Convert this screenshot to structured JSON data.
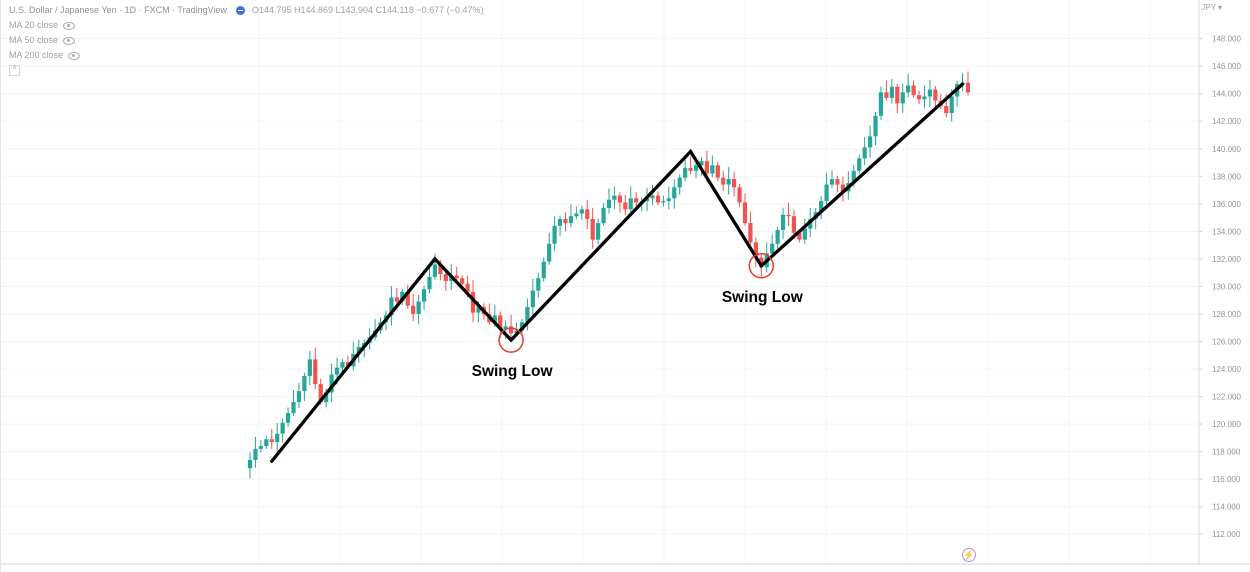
{
  "header": {
    "symbol_title": "U.S. Dollar / Japanese Yen · 1D · FXCM · TradingView",
    "ohlc": "O144.795 H144.869 L143.904 C144.118 −0.677 (−0.47%)"
  },
  "indicators": [
    {
      "label": "MA 20 close"
    },
    {
      "label": "MA 50 close"
    },
    {
      "label": "MA 200 close"
    }
  ],
  "currency": "JPY ▾",
  "colors": {
    "up": "#26a69a",
    "down": "#ef5350",
    "trend_line": "#000000",
    "circle": "#e53935",
    "grid": "#f1f3f6",
    "axis_text": "#8f949e"
  },
  "chart_data": {
    "type": "candlestick",
    "y_axis": {
      "ticks": [
        112,
        114,
        116,
        118,
        120,
        122,
        124,
        126,
        128,
        130,
        132,
        134,
        136,
        138,
        140,
        142,
        144,
        146,
        148
      ],
      "ylim": [
        111,
        149.5
      ],
      "tick_format": "0.000"
    },
    "closes": [
      117.4,
      118.2,
      118.4,
      118.9,
      118.7,
      119.3,
      120.1,
      120.8,
      121.6,
      122.4,
      123.5,
      124.7,
      122.9,
      121.6,
      122.3,
      123.6,
      124.1,
      124.5,
      124.2,
      125.1,
      125.6,
      125.9,
      126.3,
      126.8,
      127.4,
      127.9,
      129.2,
      128.9,
      129.6,
      128.6,
      128.0,
      128.9,
      129.8,
      130.7,
      131.6,
      130.9,
      130.4,
      130.8,
      130.6,
      130.2,
      129.6,
      128.1,
      128.5,
      128.0,
      127.4,
      127.9,
      126.9,
      127.1,
      126.6,
      126.8,
      127.4,
      128.5,
      129.7,
      130.6,
      131.8,
      133.1,
      134.4,
      134.9,
      134.6,
      135.1,
      135.3,
      135.6,
      134.9,
      133.4,
      134.6,
      135.7,
      136.3,
      136.6,
      136.1,
      135.6,
      136.4,
      136.1,
      136.2,
      136.4,
      136.6,
      136.1,
      136.2,
      136.4,
      137.2,
      137.9,
      138.6,
      138.4,
      138.8,
      139.1,
      138.2,
      138.8,
      137.9,
      137.4,
      137.8,
      137.2,
      136.1,
      134.6,
      133.2,
      132.1,
      131.4,
      132.4,
      133.1,
      134.1,
      135.2,
      135.1,
      133.9,
      133.4,
      134.2,
      134.9,
      135.4,
      136.2,
      137.4,
      137.8,
      137.4,
      136.9,
      137.5,
      138.4,
      139.3,
      140.1,
      140.9,
      142.4,
      144.1,
      143.7,
      144.5,
      143.3,
      144.1,
      144.6,
      143.9,
      143.6,
      143.8,
      144.3,
      143.5,
      143.1,
      142.6,
      143.8,
      144.7,
      144.8,
      144.1
    ]
  },
  "annotations": {
    "swing_lows": [
      {
        "label": "Swing Low",
        "index": 48
      },
      {
        "label": "Swing Low",
        "index": 94
      }
    ],
    "zigzag_price_points": [
      {
        "index": 4,
        "price": 117.3
      },
      {
        "index": 34,
        "price": 132.0
      },
      {
        "index": 48,
        "price": 126.1
      },
      {
        "index": 81,
        "price": 139.8
      },
      {
        "index": 94,
        "price": 131.5
      },
      {
        "index": 131,
        "price": 144.7
      }
    ]
  }
}
